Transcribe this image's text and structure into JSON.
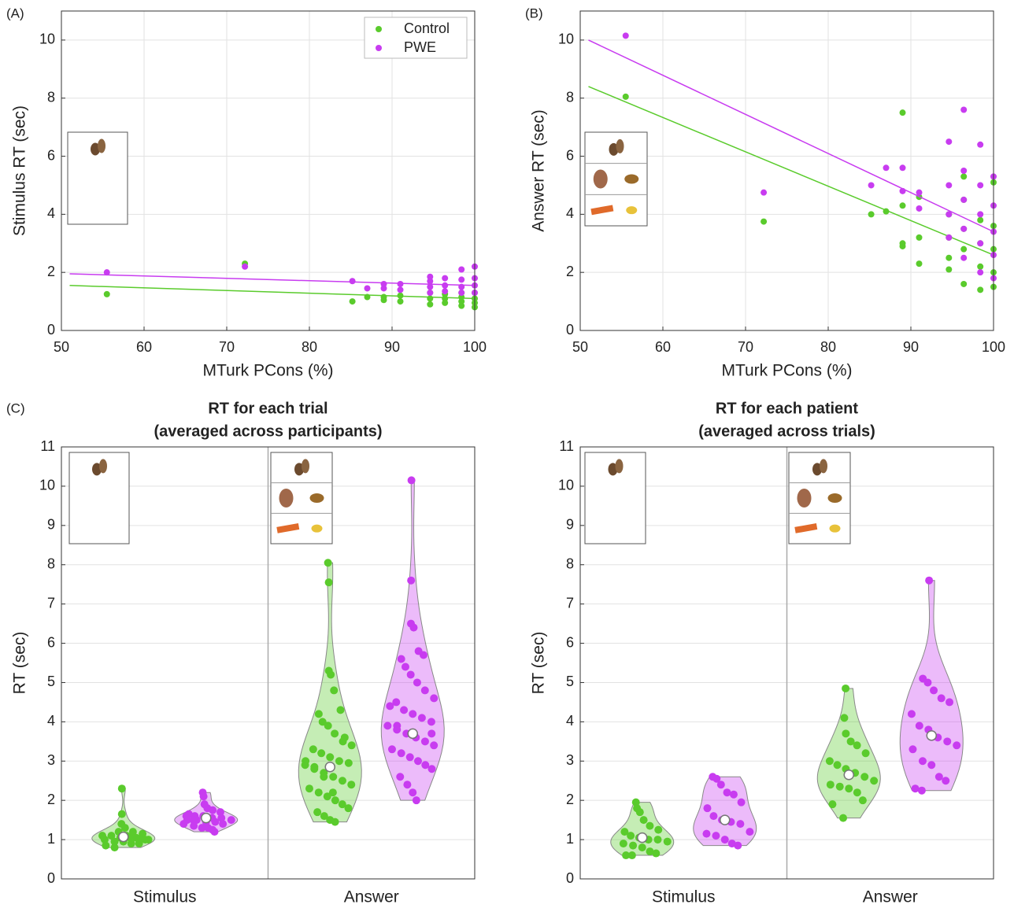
{
  "chart_data": [
    {
      "type": "scatter",
      "panel_label": "(A)",
      "xlabel": "MTurk PCons (%)",
      "ylabel": "Stimulus RT (sec)",
      "xlim": [
        50,
        100
      ],
      "xticks": [
        50,
        60,
        70,
        80,
        90,
        100
      ],
      "ylim": [
        0,
        11
      ],
      "yticks": [
        0,
        2,
        4,
        6,
        8,
        10
      ],
      "grid": true,
      "legend": "upper right",
      "series": [
        {
          "name": "Control",
          "color": "#5acb2c",
          "x": [
            55.5,
            72.2,
            85.2,
            87,
            89,
            89,
            91,
            91,
            94.6,
            94.6,
            94.6,
            96.4,
            96.4,
            96.4,
            98.4,
            98.4,
            98.4,
            98.4,
            100,
            100,
            100,
            100
          ],
          "values": [
            1.25,
            2.3,
            1.0,
            1.15,
            1.05,
            1.15,
            1.0,
            1.2,
            0.9,
            1.1,
            1.3,
            0.95,
            1.1,
            1.25,
            0.85,
            1.0,
            1.15,
            1.3,
            0.8,
            0.95,
            1.1,
            1.3
          ],
          "fit": {
            "x": [
              51,
              100
            ],
            "values": [
              1.55,
              1.1
            ]
          }
        },
        {
          "name": "PWE",
          "color": "#c83cf0",
          "x": [
            55.5,
            72.2,
            85.2,
            87,
            89,
            89,
            91,
            91,
            94.6,
            94.6,
            94.6,
            94.6,
            96.4,
            96.4,
            96.4,
            98.4,
            98.4,
            98.4,
            98.4,
            100,
            100,
            100,
            100
          ],
          "values": [
            2.0,
            2.2,
            1.7,
            1.45,
            1.45,
            1.6,
            1.4,
            1.6,
            1.3,
            1.5,
            1.7,
            1.85,
            1.35,
            1.55,
            1.8,
            1.3,
            1.5,
            1.75,
            2.1,
            1.3,
            1.55,
            1.8,
            2.2
          ],
          "fit": {
            "x": [
              51,
              100
            ],
            "values": [
              1.95,
              1.55
            ]
          }
        }
      ]
    },
    {
      "type": "scatter",
      "panel_label": "(B)",
      "xlabel": "MTurk PCons (%)",
      "ylabel": "Answer RT (sec)",
      "xlim": [
        50,
        100
      ],
      "xticks": [
        50,
        60,
        70,
        80,
        90,
        100
      ],
      "ylim": [
        0,
        11
      ],
      "yticks": [
        0,
        2,
        4,
        6,
        8,
        10
      ],
      "grid": true,
      "series": [
        {
          "color": "#5acb2c",
          "x": [
            55.5,
            72.2,
            85.2,
            87,
            89,
            89,
            89,
            89,
            91,
            91,
            91,
            94.6,
            94.6,
            94.6,
            94.6,
            96.4,
            96.4,
            96.4,
            96.4,
            96.4,
            98.4,
            98.4,
            98.4,
            98.4,
            100,
            100,
            100,
            100,
            100
          ],
          "values": [
            8.05,
            3.75,
            4.0,
            4.1,
            7.5,
            2.9,
            3.0,
            4.3,
            2.3,
            3.2,
            4.6,
            2.1,
            2.5,
            3.2,
            4.0,
            1.6,
            2.8,
            3.5,
            4.5,
            5.3,
            1.4,
            2.2,
            3.0,
            3.8,
            1.5,
            2.0,
            2.8,
            3.6,
            5.1
          ],
          "fit": {
            "x": [
              51,
              100
            ],
            "values": [
              8.4,
              2.6
            ]
          }
        },
        {
          "color": "#c83cf0",
          "x": [
            55.5,
            72.2,
            85.2,
            87,
            89,
            89,
            91,
            91,
            94.6,
            94.6,
            94.6,
            94.6,
            96.4,
            96.4,
            96.4,
            96.4,
            96.4,
            98.4,
            98.4,
            98.4,
            98.4,
            98.4,
            100,
            100,
            100,
            100,
            100
          ],
          "values": [
            10.15,
            4.75,
            5.0,
            5.6,
            5.6,
            4.8,
            4.2,
            4.75,
            3.2,
            4.0,
            5.0,
            6.5,
            2.5,
            3.5,
            4.5,
            5.5,
            7.6,
            2.0,
            3.0,
            4.0,
            5.0,
            6.4,
            1.8,
            2.6,
            3.4,
            4.3,
            5.3
          ],
          "fit": {
            "x": [
              51,
              100
            ],
            "values": [
              10.0,
              3.4
            ]
          }
        }
      ]
    },
    {
      "type": "violin",
      "panel_label": "(C)",
      "title": [
        "RT for each trial",
        "(averaged across participants)"
      ],
      "ylabel": "RT (sec)",
      "categories": [
        "Stimulus",
        "Answer"
      ],
      "ylim": [
        0,
        11
      ],
      "yticks": [
        0,
        1,
        2,
        3,
        4,
        5,
        6,
        7,
        8,
        9,
        10,
        11
      ],
      "grid": true,
      "series": [
        {
          "color": "#5acb2c",
          "medians": [
            1.07,
            2.85
          ],
          "values": [
            [
              2.3,
              1.65,
              1.4,
              1.3,
              1.2,
              1.15,
              1.1,
              1.1,
              1.05,
              1.05,
              1.0,
              1.0,
              1.0,
              0.95,
              0.95,
              0.9,
              0.9,
              0.85,
              0.8,
              1.2,
              1.1,
              1.05,
              1.0
            ],
            [
              8.05,
              7.55,
              5.3,
              5.2,
              4.8,
              4.3,
              4.2,
              4.0,
              3.9,
              3.7,
              3.5,
              3.4,
              3.3,
              3.2,
              3.1,
              3.0,
              2.95,
              2.9,
              2.8,
              2.7,
              2.6,
              2.5,
              2.4,
              2.3,
              2.2,
              2.1,
              2.0,
              1.9,
              1.8,
              1.7,
              1.6,
              1.5,
              1.45,
              3.6,
              3.0,
              2.85,
              2.6,
              2.2
            ]
          ]
        },
        {
          "color": "#c83cf0",
          "medians": [
            1.55,
            3.7
          ],
          "values": [
            [
              2.2,
              2.1,
              1.9,
              1.8,
              1.75,
              1.7,
              1.65,
              1.6,
              1.6,
              1.55,
              1.55,
              1.5,
              1.5,
              1.5,
              1.45,
              1.45,
              1.4,
              1.4,
              1.35,
              1.3,
              1.3,
              1.25,
              1.2,
              1.6,
              1.5
            ],
            [
              10.15,
              7.6,
              6.5,
              6.4,
              5.8,
              5.7,
              5.6,
              5.4,
              5.2,
              5.0,
              4.8,
              4.6,
              4.5,
              4.3,
              4.2,
              4.1,
              4.0,
              3.9,
              3.8,
              3.7,
              3.6,
              3.5,
              3.4,
              3.3,
              3.2,
              3.1,
              3.0,
              2.9,
              2.8,
              2.6,
              2.4,
              2.2,
              2.0,
              3.7,
              4.4,
              3.9
            ]
          ]
        }
      ]
    },
    {
      "type": "violin",
      "title": [
        "RT for each patient",
        "(averaged across trials)"
      ],
      "ylabel": "RT (sec)",
      "categories": [
        "Stimulus",
        "Answer"
      ],
      "ylim": [
        0,
        11
      ],
      "yticks": [
        0,
        1,
        2,
        3,
        4,
        5,
        6,
        7,
        8,
        9,
        10,
        11
      ],
      "grid": true,
      "series": [
        {
          "color": "#5acb2c",
          "medians": [
            1.05,
            2.65
          ],
          "values": [
            [
              1.95,
              1.8,
              1.7,
              1.5,
              1.35,
              1.25,
              1.2,
              1.1,
              1.05,
              1.0,
              1.0,
              0.95,
              0.9,
              0.85,
              0.8,
              0.7,
              0.65,
              0.6,
              0.6
            ],
            [
              4.85,
              4.1,
              3.7,
              3.5,
              3.4,
              3.2,
              3.0,
              2.9,
              2.8,
              2.7,
              2.6,
              2.5,
              2.4,
              2.35,
              2.3,
              2.2,
              2.0,
              1.9,
              1.55
            ]
          ]
        },
        {
          "color": "#c83cf0",
          "medians": [
            1.5,
            3.65
          ],
          "values": [
            [
              2.6,
              2.55,
              2.4,
              2.2,
              2.15,
              1.95,
              1.8,
              1.6,
              1.5,
              1.45,
              1.4,
              1.2,
              1.15,
              1.1,
              1.0,
              0.9,
              0.85
            ],
            [
              7.6,
              5.1,
              5.0,
              4.8,
              4.6,
              4.5,
              4.2,
              3.9,
              3.8,
              3.6,
              3.5,
              3.4,
              3.3,
              3.0,
              2.9,
              2.6,
              2.5,
              2.3,
              2.25
            ]
          ]
        }
      ]
    }
  ]
}
